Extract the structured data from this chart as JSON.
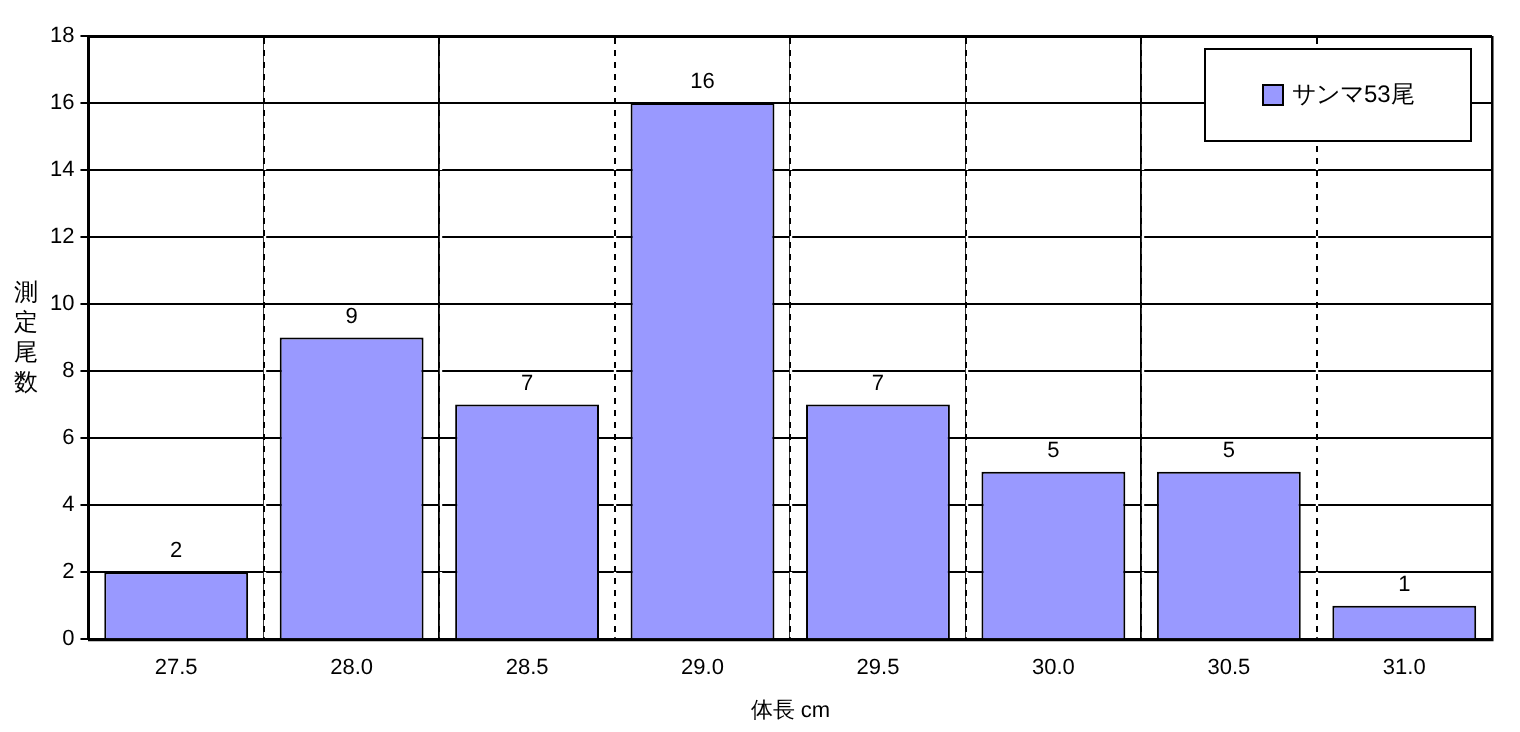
{
  "chart_data": {
    "type": "bar",
    "categories": [
      "27.5",
      "28.0",
      "28.5",
      "29.0",
      "29.5",
      "30.0",
      "30.5",
      "31.0"
    ],
    "series": [
      {
        "name": "サンマ53尾",
        "color": "#9999ff",
        "values": [
          2,
          9,
          7,
          16,
          7,
          5,
          5,
          1
        ]
      }
    ],
    "xlabel": "体長 cm",
    "ylabel": "測定尾数",
    "ylim": [
      0,
      18
    ],
    "yticks": [
      0,
      2,
      4,
      6,
      8,
      10,
      12,
      14,
      16,
      18
    ],
    "grid": true,
    "legend": "top right",
    "data_labels": true
  }
}
